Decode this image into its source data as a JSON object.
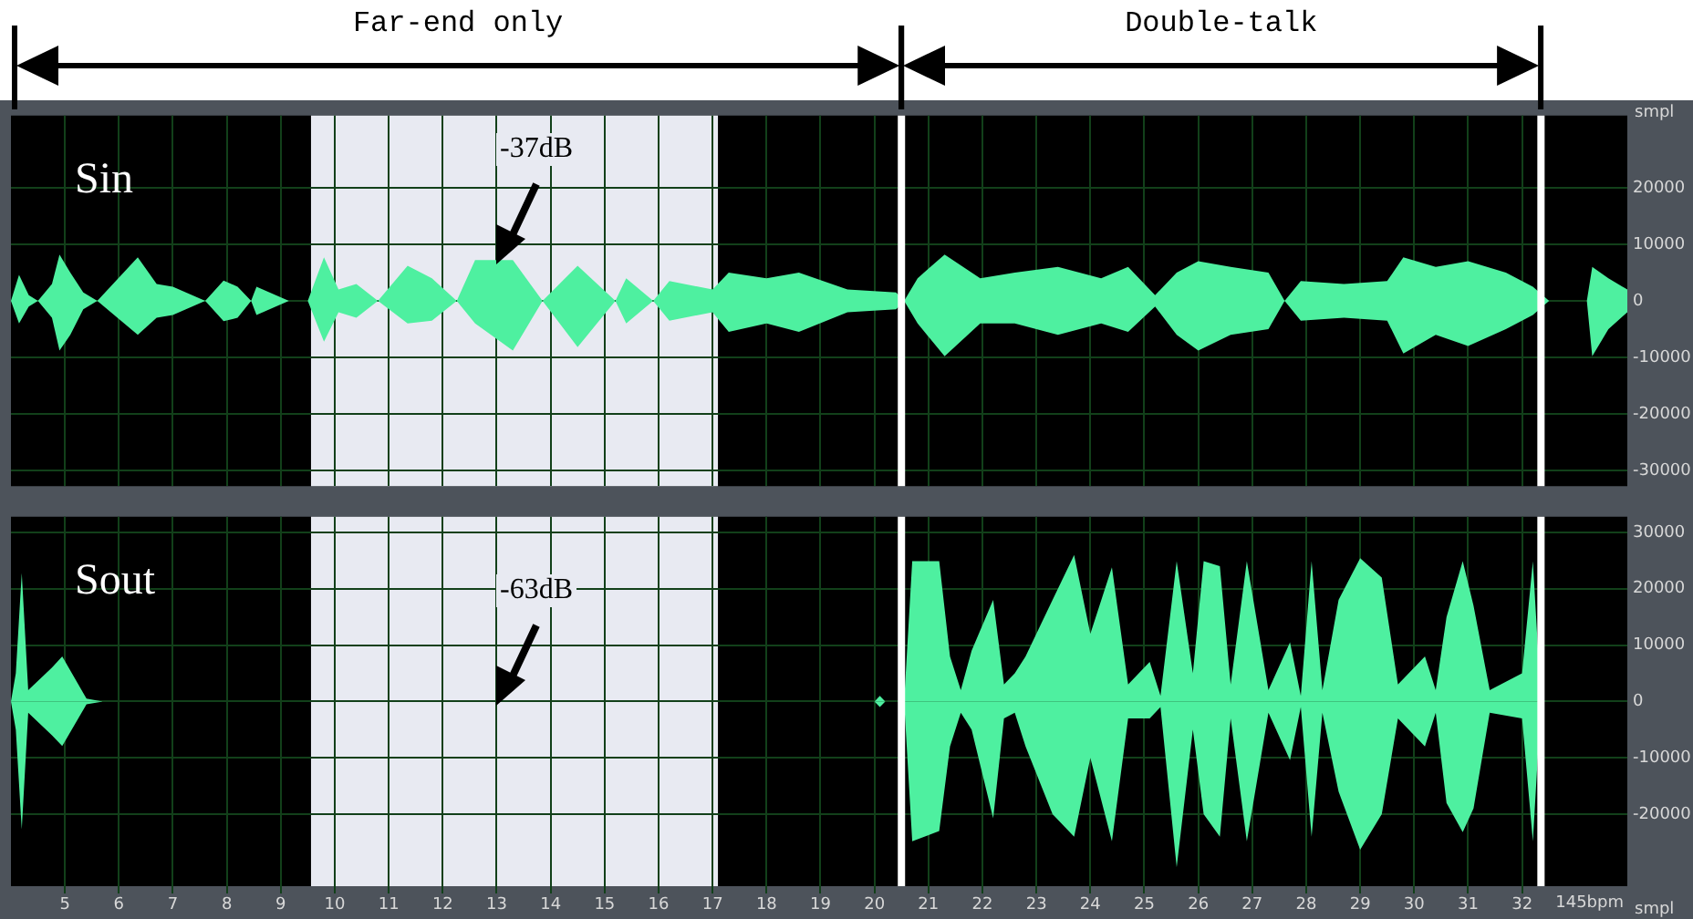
{
  "chart_data": [
    {
      "type": "area",
      "title": "Sin",
      "ylabel": "smpl",
      "tick_labels": "y",
      "grid": true,
      "annotations": [
        "Far-end only",
        "Double-talk",
        "-37dB"
      ],
      "xlim": [
        4,
        33.95
      ],
      "xticks": [
        5,
        6,
        7,
        8,
        9,
        10,
        11,
        12,
        13,
        14,
        15,
        16,
        17,
        18,
        19,
        20,
        21,
        22,
        23,
        24,
        25,
        26,
        27,
        28,
        29,
        30,
        31,
        32
      ],
      "ylim": [
        -32768,
        32768
      ],
      "yticks": [
        20000,
        10000,
        0,
        -10000,
        -20000,
        -30000
      ],
      "ref_lines": [
        {
          "axis": "x",
          "value": 20.5,
          "color": "#ffffff"
        },
        {
          "axis": "x",
          "value": 32.35,
          "color": "#ffffff"
        }
      ],
      "bands": [
        {
          "axis": "x",
          "from": 9.56,
          "to": 17.1,
          "color": "#e8eaf2"
        }
      ],
      "x": [
        4.0,
        4.15,
        4.33,
        4.5,
        4.76,
        4.9,
        5.1,
        5.34,
        5.6,
        6.35,
        6.7,
        7.0,
        7.6,
        7.94,
        8.2,
        8.45,
        8.55,
        9.15,
        9.5,
        9.8,
        10.07,
        10.4,
        10.8,
        11.35,
        11.8,
        12.26,
        12.6,
        13.3,
        13.85,
        14.5,
        15.2,
        15.4,
        15.9,
        16.2,
        17.0,
        17.3,
        18.0,
        18.6,
        19.5,
        20.4,
        20.55,
        20.8,
        21.3,
        21.96,
        22.6,
        23.4,
        24.2,
        24.7,
        25.2,
        25.6,
        26.0,
        26.6,
        27.3,
        27.6,
        27.9,
        28.7,
        29.5,
        29.8,
        30.4,
        31.0,
        31.7,
        32.2,
        32.5,
        33.2,
        33.3,
        33.6,
        33.95
      ],
      "series": [
        {
          "color": "#4ef0a0",
          "values": [
            0,
            4600,
            1000,
            0,
            3000,
            8200,
            5000,
            1500,
            0,
            7700,
            3000,
            2500,
            0,
            3600,
            2500,
            0,
            2500,
            0,
            0,
            7700,
            2000,
            3000,
            0,
            6200,
            4000,
            0,
            7200,
            7200,
            0,
            6200,
            0,
            4000,
            0,
            3500,
            2000,
            5000,
            4000,
            5000,
            2000,
            1500,
            0,
            4000,
            8200,
            4000,
            5000,
            6000,
            4000,
            6000,
            1000,
            5000,
            7000,
            6000,
            5000,
            0,
            3500,
            3000,
            3500,
            7700,
            6000,
            7000,
            5000,
            2500,
            0,
            0,
            6000,
            4000,
            2000
          ]
        },
        {
          "color": "#4ef0a0",
          "values": [
            0,
            -4000,
            -1000,
            0,
            -3000,
            -8800,
            -6000,
            -1500,
            0,
            -6000,
            -3000,
            -2500,
            0,
            -3600,
            -3000,
            0,
            -2500,
            0,
            0,
            -7200,
            -2000,
            -3000,
            0,
            -4000,
            -3500,
            0,
            -4000,
            -8800,
            0,
            -8200,
            0,
            -4000,
            0,
            -3500,
            -2000,
            -5500,
            -4000,
            -5500,
            -2000,
            -1500,
            0,
            -4000,
            -9800,
            -4000,
            -4000,
            -6000,
            -4000,
            -5500,
            -1000,
            -6000,
            -8800,
            -6000,
            -5000,
            0,
            -3500,
            -3000,
            -3500,
            -9300,
            -6000,
            -8000,
            -5000,
            -2500,
            0,
            0,
            -9800,
            -5000,
            -2000
          ]
        }
      ]
    },
    {
      "type": "area",
      "title": "Sout",
      "ylabel": "smpl",
      "xlabel": "145bpm",
      "grid": true,
      "annotations": [
        "-63dB"
      ],
      "xlim": [
        4,
        33.95
      ],
      "xticks": [
        5,
        6,
        7,
        8,
        9,
        10,
        11,
        12,
        13,
        14,
        15,
        16,
        17,
        18,
        19,
        20,
        21,
        22,
        23,
        24,
        25,
        26,
        27,
        28,
        29,
        30,
        31,
        32
      ],
      "ylim": [
        -32768,
        32768
      ],
      "yticks": [
        30000,
        20000,
        10000,
        0,
        -10000,
        -20000
      ],
      "ref_lines": [
        {
          "axis": "x",
          "value": 20.5,
          "color": "#ffffff"
        },
        {
          "axis": "x",
          "value": 32.35,
          "color": "#ffffff"
        }
      ],
      "bands": [
        {
          "axis": "x",
          "from": 9.56,
          "to": 17.1,
          "color": "#e8eaf2"
        }
      ],
      "x": [
        4.0,
        4.09,
        4.2,
        4.32,
        4.76,
        4.95,
        5.4,
        5.7,
        20.0,
        20.1,
        20.2,
        20.55,
        20.7,
        21.2,
        21.4,
        21.6,
        21.8,
        22.2,
        22.4,
        22.6,
        22.8,
        23.3,
        23.7,
        24.0,
        24.4,
        24.7,
        25.1,
        25.3,
        25.6,
        25.9,
        26.1,
        26.4,
        26.6,
        26.9,
        27.3,
        27.7,
        27.9,
        28.1,
        28.3,
        28.6,
        29.0,
        29.4,
        29.7,
        30.2,
        30.4,
        30.6,
        30.9,
        31.1,
        31.4,
        32.0,
        32.2,
        32.35,
        33.95
      ],
      "series": [
        {
          "color": "#4ef0a0",
          "values": [
            0,
            5000,
            22800,
            2000,
            6000,
            8000,
            500,
            0,
            0,
            1000,
            0,
            0,
            24900,
            24900,
            8000,
            2000,
            9000,
            18000,
            3000,
            5000,
            8000,
            18000,
            26000,
            12000,
            23800,
            3000,
            7000,
            1000,
            24900,
            5000,
            24900,
            24000,
            3000,
            24900,
            2000,
            10500,
            1000,
            24900,
            2000,
            18000,
            25400,
            22000,
            3000,
            8000,
            2000,
            15000,
            24900,
            17000,
            2000,
            5000,
            24900,
            0,
            0
          ]
        },
        {
          "color": "#4ef0a0",
          "values": [
            0,
            -5000,
            -22700,
            -2000,
            -6000,
            -7900,
            -500,
            0,
            0,
            -1000,
            0,
            0,
            -24800,
            -23000,
            -8000,
            -2000,
            -5000,
            -20700,
            -3000,
            -2000,
            -8000,
            -20000,
            -24000,
            -10000,
            -24800,
            -3000,
            -3000,
            -1000,
            -29400,
            -5000,
            -20000,
            -24000,
            -3000,
            -24800,
            -2000,
            -10400,
            -1000,
            -24000,
            -2000,
            -16000,
            -26300,
            -20000,
            -3000,
            -8000,
            -2000,
            -18000,
            -23200,
            -19000,
            -2000,
            -3000,
            -24800,
            0,
            0
          ]
        }
      ]
    }
  ]
}
